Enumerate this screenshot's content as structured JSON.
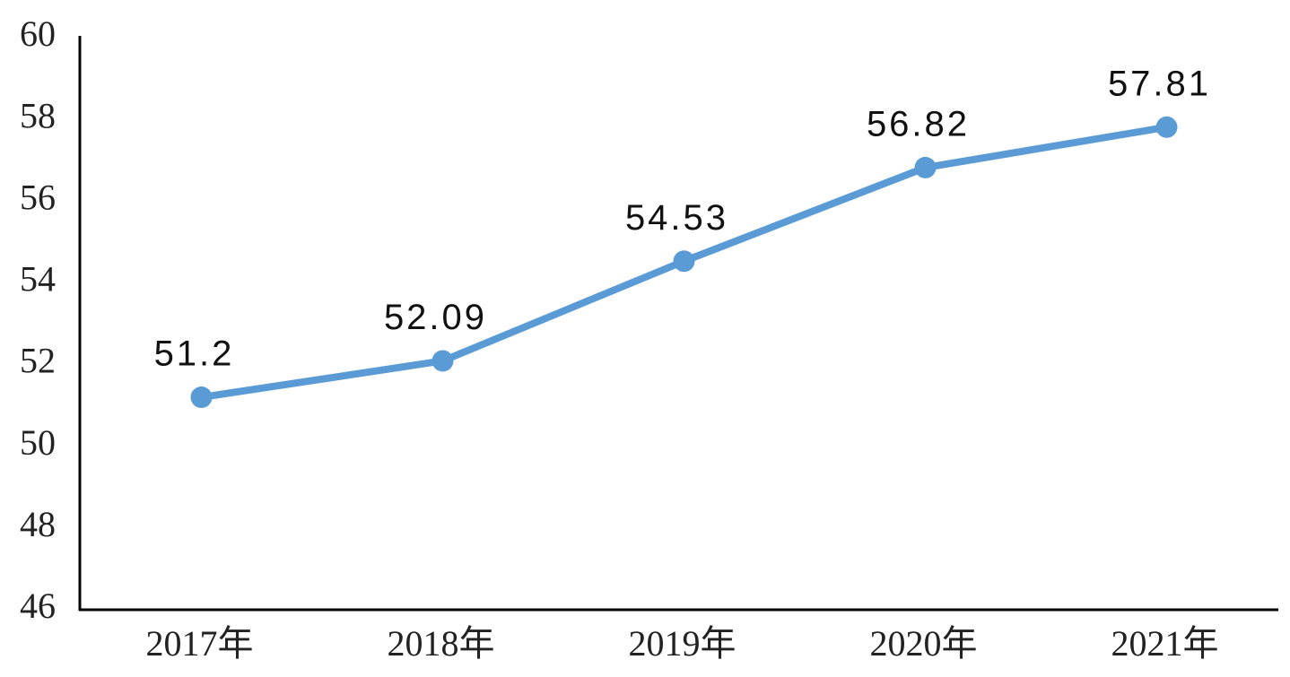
{
  "chart_data": {
    "type": "line",
    "categories": [
      "2017年",
      "2018年",
      "2019年",
      "2020年",
      "2021年"
    ],
    "values": [
      51.2,
      52.09,
      54.53,
      56.82,
      57.81
    ],
    "color": "#5b9bd5",
    "ylim": [
      46,
      60
    ],
    "yticks": [
      46,
      48,
      50,
      52,
      54,
      56,
      58,
      60
    ]
  }
}
